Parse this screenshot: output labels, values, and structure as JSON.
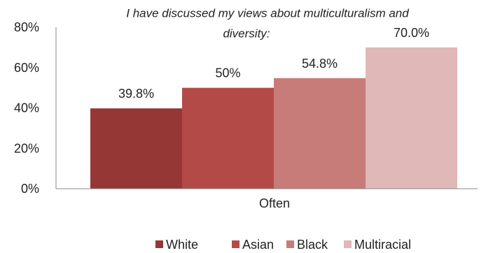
{
  "chart_data": {
    "type": "bar",
    "title_lines": [
      "I have discussed my views about multiculturalism and",
      "diversity:"
    ],
    "categories": [
      "Often"
    ],
    "series": [
      {
        "name": "White",
        "values": [
          39.8
        ],
        "label": "39.8%",
        "color": "#953735"
      },
      {
        "name": "Asian",
        "values": [
          50
        ],
        "label": "50%",
        "color": "#b44a48"
      },
      {
        "name": "Black",
        "values": [
          54.8
        ],
        "label": "54.8%",
        "color": "#c77c7a"
      },
      {
        "name": "Multiracial",
        "values": [
          70.0
        ],
        "label": "70.0%",
        "color": "#e0b8b7"
      }
    ],
    "ylim": [
      0,
      80
    ],
    "yticks": [
      {
        "value": 0,
        "label": "0%"
      },
      {
        "value": 20,
        "label": "20%"
      },
      {
        "value": 40,
        "label": "40%"
      },
      {
        "value": 60,
        "label": "60%"
      },
      {
        "value": 80,
        "label": "80%"
      }
    ],
    "grid": false,
    "legend_position": "bottom"
  }
}
